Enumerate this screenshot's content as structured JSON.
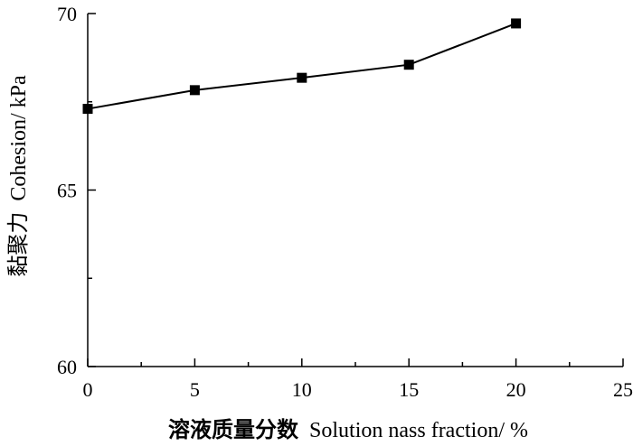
{
  "chart_data": {
    "type": "line",
    "title": "",
    "xlabel_cn": "溶液质量分数",
    "xlabel_en": "Solution nass fraction/ %",
    "ylabel_cn": "黏聚力",
    "ylabel_en": "Cohesion/ kPa",
    "xlim": [
      0,
      25
    ],
    "ylim": [
      60,
      70
    ],
    "x_major_ticks": [
      0,
      5,
      10,
      15,
      20,
      25
    ],
    "y_major_ticks": [
      60,
      65,
      70
    ],
    "x_minor_ticks": [
      2.5,
      7.5,
      12.5,
      17.5,
      22.5
    ],
    "y_minor_ticks": [
      62.5,
      67.5
    ],
    "grid": false,
    "marker": "square",
    "series": [
      {
        "x": [
          0,
          5,
          10,
          15,
          20
        ],
        "y": [
          67.3,
          67.83,
          68.18,
          68.55,
          69.72
        ]
      }
    ]
  }
}
